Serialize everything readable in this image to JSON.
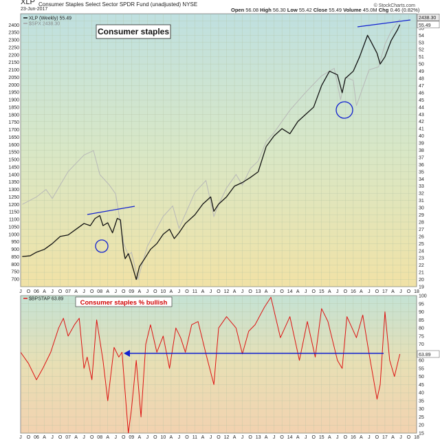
{
  "header": {
    "symbol": "XLP",
    "description": "Consumer Staples Select Sector SPDR Fund (unadjusted) NYSE",
    "date": "23-Jun-2017",
    "open_label": "Open",
    "open": "56.08",
    "high_label": "High",
    "high": "56.30",
    "low_label": "Low",
    "low": "55.42",
    "close_label": "Close",
    "close": "55.49",
    "volume_label": "Volume",
    "volume": "45.0M",
    "chg_label": "Chg",
    "chg": "0.46 (0.82%)",
    "source": "© StockCharts.com"
  },
  "colors": {
    "price_line": "#111111",
    "spx_line": "#b8b8b8",
    "bullish_line": "#dd1111",
    "annotation_blue": "#1020d0",
    "note_red": "#d00000",
    "grid": "#b0c0a0"
  },
  "chart_data": [
    {
      "type": "line",
      "title": "Consumer staples",
      "x_ticks": [
        "J",
        "O",
        "06",
        "A",
        "J",
        "O",
        "07",
        "A",
        "J",
        "O",
        "08",
        "A",
        "J",
        "O",
        "09",
        "A",
        "J",
        "O",
        "10",
        "A",
        "J",
        "O",
        "11",
        "A",
        "J",
        "O",
        "12",
        "A",
        "J",
        "O",
        "13",
        "A",
        "J",
        "O",
        "14",
        "A",
        "J",
        "O",
        "15",
        "A",
        "J",
        "O",
        "16",
        "A",
        "J",
        "O",
        "17",
        "A",
        "J",
        "O",
        "18"
      ],
      "legend": [
        {
          "name": "XLP (Weekly) 55.49",
          "color": "#111111"
        },
        {
          "name": "$SPX 2438.30",
          "color": "#a0a0a0"
        }
      ],
      "right_axis": {
        "label": "XLP",
        "range": [
          19,
          57
        ],
        "ticks": [
          19,
          20,
          21,
          22,
          23,
          24,
          25,
          26,
          27,
          28,
          29,
          30,
          31,
          32,
          33,
          34,
          35,
          36,
          37,
          38,
          39,
          40,
          41,
          42,
          43,
          44,
          45,
          46,
          47,
          48,
          49,
          50,
          51,
          52,
          53,
          54,
          55,
          56
        ],
        "last_value": "55.49"
      },
      "left_axis": {
        "label": "$SPX",
        "range": [
          650,
          2475
        ],
        "ticks": [
          700,
          750,
          800,
          850,
          900,
          950,
          1000,
          1050,
          1100,
          1150,
          1200,
          1250,
          1300,
          1350,
          1400,
          1450,
          1500,
          1550,
          1600,
          1650,
          1700,
          1750,
          1800,
          1850,
          1900,
          1950,
          2000,
          2050,
          2100,
          2150,
          2200,
          2250,
          2300,
          2350,
          2400
        ],
        "last_value": "2438.30"
      },
      "series": [
        {
          "name": "XLP (Weekly) 55.49",
          "x": [
            2005.55,
            2005.8,
            2006.0,
            2006.25,
            2006.5,
            2006.75,
            2007.0,
            2007.25,
            2007.5,
            2007.7,
            2007.85,
            2008.0,
            2008.1,
            2008.25,
            2008.4,
            2008.55,
            2008.65,
            2008.75,
            2008.8,
            2008.9,
            2009.0,
            2009.15,
            2009.25,
            2009.4,
            2009.6,
            2009.8,
            2010.0,
            2010.2,
            2010.35,
            2010.5,
            2010.7,
            2011.0,
            2011.25,
            2011.5,
            2011.6,
            2011.75,
            2012.0,
            2012.25,
            2012.5,
            2012.75,
            2013.0,
            2013.25,
            2013.5,
            2013.75,
            2014.0,
            2014.25,
            2014.5,
            2014.75,
            2015.0,
            2015.25,
            2015.5,
            2015.65,
            2015.75,
            2016.0,
            2016.2,
            2016.45,
            2016.55,
            2016.75,
            2016.85,
            2017.0,
            2017.2,
            2017.4,
            2017.47
          ],
          "values": [
            23.2,
            23.3,
            23.8,
            24.2,
            25.0,
            26.0,
            26.2,
            27.0,
            27.8,
            27.5,
            28.5,
            28.9,
            27.5,
            27.9,
            26.5,
            28.5,
            28.3,
            24.0,
            22.9,
            23.6,
            22.3,
            20.0,
            21.8,
            22.8,
            24.2,
            25.0,
            26.3,
            27.0,
            25.7,
            26.5,
            27.8,
            29.0,
            30.5,
            31.5,
            29.5,
            30.5,
            31.5,
            33.0,
            33.5,
            34.2,
            35.0,
            38.5,
            40.0,
            41.0,
            40.3,
            42.0,
            43.0,
            44.0,
            47.0,
            49.0,
            48.5,
            46.0,
            48.0,
            49.0,
            51.0,
            54.0,
            53.2,
            51.5,
            50.0,
            51.0,
            53.3,
            54.8,
            55.49
          ]
        },
        {
          "name": "$SPX 2438.30",
          "x": [
            2005.55,
            2006.0,
            2006.3,
            2006.5,
            2007.0,
            2007.5,
            2007.8,
            2008.0,
            2008.3,
            2008.5,
            2008.75,
            2008.9,
            2009.0,
            2009.2,
            2009.5,
            2010.0,
            2010.3,
            2010.5,
            2011.0,
            2011.35,
            2011.6,
            2011.75,
            2012.0,
            2012.3,
            2012.5,
            2012.75,
            2013.0,
            2013.25,
            2013.5,
            2014.0,
            2014.5,
            2015.0,
            2015.4,
            2015.6,
            2015.75,
            2016.0,
            2016.1,
            2016.5,
            2016.8,
            2017.0,
            2017.2,
            2017.47
          ],
          "values": [
            1200,
            1250,
            1300,
            1240,
            1420,
            1530,
            1560,
            1400,
            1330,
            1270,
            940,
            860,
            880,
            700,
            920,
            1120,
            1190,
            1040,
            1280,
            1360,
            1120,
            1200,
            1310,
            1400,
            1330,
            1440,
            1490,
            1620,
            1680,
            1830,
            1950,
            2060,
            2110,
            1900,
            2050,
            2030,
            1860,
            2100,
            2120,
            2270,
            2360,
            2438.3
          ]
        }
      ],
      "annotations": [
        "Consumer staples"
      ]
    },
    {
      "type": "line",
      "title": "Consumer staples % bullish",
      "legend": [
        {
          "name": "$BPSTAP 63.89",
          "color": "#dd1111"
        }
      ],
      "right_axis": {
        "range": [
          15,
          100
        ],
        "ticks": [
          15,
          20,
          25,
          30,
          35,
          40,
          45,
          50,
          55,
          60,
          65,
          70,
          75,
          80,
          85,
          90,
          95,
          100
        ],
        "last_value": "63.89"
      },
      "series": [
        {
          "name": "$BPSTAP 63.89",
          "x": [
            2005.5,
            2005.75,
            2006.0,
            2006.2,
            2006.45,
            2006.7,
            2006.85,
            2007.0,
            2007.2,
            2007.35,
            2007.5,
            2007.6,
            2007.75,
            2007.9,
            2008.1,
            2008.25,
            2008.45,
            2008.6,
            2008.7,
            2008.8,
            2008.9,
            2009.0,
            2009.15,
            2009.3,
            2009.45,
            2009.6,
            2009.8,
            2010.0,
            2010.2,
            2010.4,
            2010.55,
            2010.7,
            2010.9,
            2011.1,
            2011.35,
            2011.6,
            2011.75,
            2012.0,
            2012.3,
            2012.5,
            2012.7,
            2012.9,
            2013.2,
            2013.4,
            2013.7,
            2014.0,
            2014.3,
            2014.55,
            2014.8,
            2015.0,
            2015.2,
            2015.5,
            2015.65,
            2015.8,
            2016.1,
            2016.3,
            2016.5,
            2016.75,
            2016.85,
            2017.0,
            2017.15,
            2017.3,
            2017.47
          ],
          "values": [
            65,
            58,
            48,
            55,
            65,
            80,
            86,
            75,
            82,
            86,
            55,
            62,
            48,
            85,
            60,
            35,
            68,
            62,
            65,
            40,
            15,
            30,
            60,
            25,
            70,
            82,
            65,
            75,
            55,
            80,
            74,
            65,
            82,
            84,
            64,
            45,
            80,
            87,
            80,
            64,
            78,
            82,
            93,
            99,
            74,
            87,
            60,
            84,
            62,
            92,
            84,
            60,
            55,
            87,
            74,
            88,
            64,
            36,
            45,
            90,
            60,
            50,
            63.89
          ]
        }
      ],
      "annotations": [
        "Consumer staples % bullish"
      ]
    }
  ]
}
